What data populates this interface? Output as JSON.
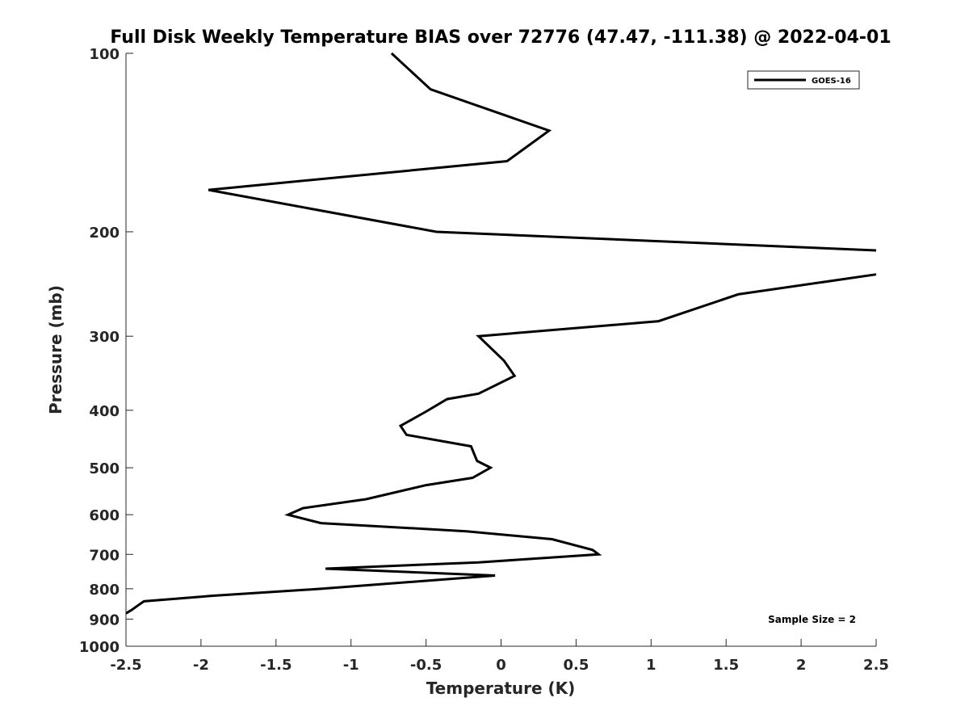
{
  "chart_data": {
    "type": "line",
    "title": "Full Disk Weekly Temperature BIAS over 72776 (47.47, -111.38) @ 2022-04-01",
    "xlabel": "Temperature (K)",
    "ylabel": "Pressure (mb)",
    "xlim": [
      -2.5,
      2.5
    ],
    "ylim": [
      100,
      1000
    ],
    "y_scale": "log",
    "y_reversed": true,
    "xticks": [
      -2.5,
      -2,
      -1.5,
      -1,
      -0.5,
      0,
      0.5,
      1,
      1.5,
      2,
      2.5
    ],
    "xtick_labels": [
      "-2.5",
      "-2",
      "-1.5",
      "-1",
      "-0.5",
      "0",
      "0.5",
      "1",
      "1.5",
      "2",
      "2.5"
    ],
    "yticks": [
      100,
      200,
      300,
      400,
      500,
      600,
      700,
      800,
      900,
      1000
    ],
    "ytick_labels": [
      "100",
      "200",
      "300",
      "400",
      "500",
      "600",
      "700",
      "800",
      "900",
      "1000"
    ],
    "grid": false,
    "legend": {
      "position": "top-right",
      "entries": [
        "GOES-16"
      ]
    },
    "annotations": [
      {
        "text": "Sample Size = 2",
        "position": "bottom-right"
      }
    ],
    "series": [
      {
        "name": "GOES-16",
        "color": "#000000",
        "points": [
          {
            "x": -0.73,
            "y": 100
          },
          {
            "x": -0.47,
            "y": 115
          },
          {
            "x": 0.32,
            "y": 135
          },
          {
            "x": 0.04,
            "y": 152
          },
          {
            "x": -1.95,
            "y": 170
          },
          {
            "x": -0.43,
            "y": 200
          },
          {
            "x": 2.5,
            "y": 215
          },
          {
            "x": null,
            "y": 225
          },
          {
            "x": 2.5,
            "y": 236
          },
          {
            "x": 1.58,
            "y": 255
          },
          {
            "x": 1.05,
            "y": 283
          },
          {
            "x": -0.15,
            "y": 300
          },
          {
            "x": 0.02,
            "y": 330
          },
          {
            "x": 0.09,
            "y": 350
          },
          {
            "x": -0.15,
            "y": 375
          },
          {
            "x": -0.36,
            "y": 383
          },
          {
            "x": -0.5,
            "y": 402
          },
          {
            "x": -0.67,
            "y": 425
          },
          {
            "x": -0.63,
            "y": 440
          },
          {
            "x": -0.2,
            "y": 460
          },
          {
            "x": -0.16,
            "y": 487
          },
          {
            "x": -0.07,
            "y": 500
          },
          {
            "x": -0.19,
            "y": 520
          },
          {
            "x": -0.5,
            "y": 535
          },
          {
            "x": -0.9,
            "y": 565
          },
          {
            "x": -1.32,
            "y": 585
          },
          {
            "x": -1.42,
            "y": 600
          },
          {
            "x": -1.2,
            "y": 620
          },
          {
            "x": -0.23,
            "y": 640
          },
          {
            "x": 0.34,
            "y": 660
          },
          {
            "x": 0.61,
            "y": 688
          },
          {
            "x": 0.65,
            "y": 700
          },
          {
            "x": -0.15,
            "y": 722
          },
          {
            "x": -1.17,
            "y": 740
          },
          {
            "x": -0.04,
            "y": 760
          },
          {
            "x": -1.2,
            "y": 800
          },
          {
            "x": -1.92,
            "y": 822
          },
          {
            "x": -2.38,
            "y": 840
          },
          {
            "x": -2.41,
            "y": 850
          },
          {
            "x": -2.46,
            "y": 868
          },
          {
            "x": -2.5,
            "y": 880
          }
        ]
      }
    ]
  }
}
